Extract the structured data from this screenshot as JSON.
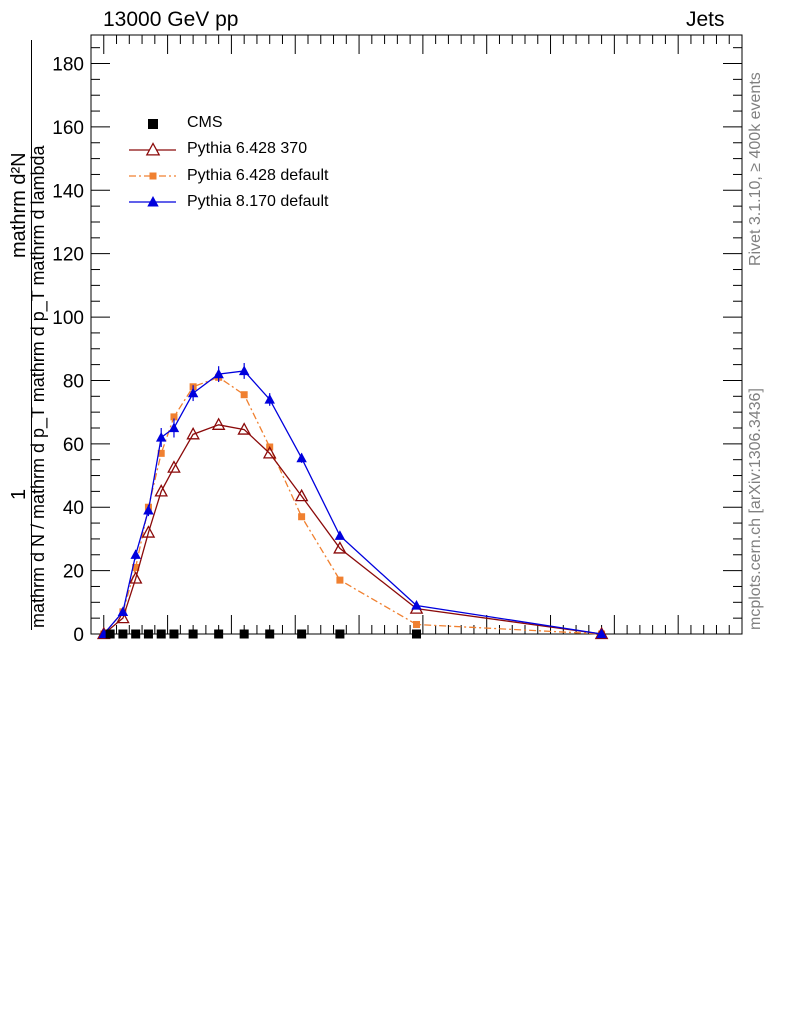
{
  "header": {
    "left_title": "13000 GeV pp",
    "right_title": "Jets"
  },
  "side_labels": {
    "rivet": "Rivet 3.1.10, ≥ 400k events",
    "mcplots": "mcplots.cern.ch [arXiv:1306.3436]"
  },
  "y_axis_label": {
    "fraction_top": "1",
    "fraction_bottom": "mathrm d N / mathrm d p_T mathrm d p_T mathrm d lambda",
    "numerator": "mathrm d²N"
  },
  "legend": {
    "entries": [
      "CMS",
      "Pythia 6.428 370",
      "Pythia 6.428 default",
      "Pythia 8.170 default"
    ]
  },
  "colors": {
    "cms": "#000000",
    "py6_370": "#8b0a0a",
    "py6_default": "#f08030",
    "py8_default": "#0000dd"
  },
  "chart_data": {
    "type": "line",
    "ylim": [
      0,
      189
    ],
    "yticks": [
      0,
      20,
      40,
      60,
      80,
      100,
      120,
      140,
      160,
      180
    ],
    "xlim": [
      -0.1,
      5.0
    ],
    "x_tick_labels_visible": false,
    "legend_position": "top-left",
    "series": [
      {
        "name": "CMS",
        "style": "square-markers",
        "x": [
          0.05,
          0.15,
          0.25,
          0.35,
          0.45,
          0.55,
          0.7,
          0.9,
          1.1,
          1.3,
          1.55,
          1.85,
          2.45
        ],
        "y": [
          0,
          0,
          0,
          0,
          0,
          0,
          0,
          0,
          0,
          0,
          0,
          0,
          0
        ]
      },
      {
        "name": "Pythia 6.428 370",
        "style": "open-triangle-solid",
        "x": [
          0,
          0.15,
          0.25,
          0.35,
          0.45,
          0.55,
          0.7,
          0.9,
          1.1,
          1.3,
          1.55,
          1.85,
          2.45,
          3.9
        ],
        "y": [
          0,
          5,
          17.5,
          32,
          45,
          52.5,
          63,
          66,
          64.5,
          57,
          43.5,
          27,
          8,
          0
        ]
      },
      {
        "name": "Pythia 6.428 default",
        "style": "square-dashdot",
        "x": [
          0,
          0.15,
          0.25,
          0.35,
          0.45,
          0.55,
          0.7,
          0.9,
          1.1,
          1.3,
          1.55,
          1.85,
          2.45,
          3.9
        ],
        "y": [
          0,
          7,
          21,
          40,
          57,
          68.5,
          78,
          81,
          75.5,
          59,
          37,
          17,
          3,
          0
        ]
      },
      {
        "name": "Pythia 8.170 default",
        "style": "filled-triangle-solid",
        "x": [
          0,
          0.15,
          0.25,
          0.35,
          0.45,
          0.55,
          0.7,
          0.9,
          1.1,
          1.3,
          1.55,
          1.85,
          2.45,
          3.9
        ],
        "y": [
          0,
          7,
          25,
          39,
          62,
          65,
          76,
          82,
          83,
          74,
          55.5,
          31,
          9,
          0
        ],
        "yerr": [
          0.5,
          1,
          1.5,
          1.8,
          3,
          3,
          2.5,
          2.5,
          2.5,
          2,
          1.5,
          1,
          0.5,
          0.2
        ]
      }
    ]
  }
}
